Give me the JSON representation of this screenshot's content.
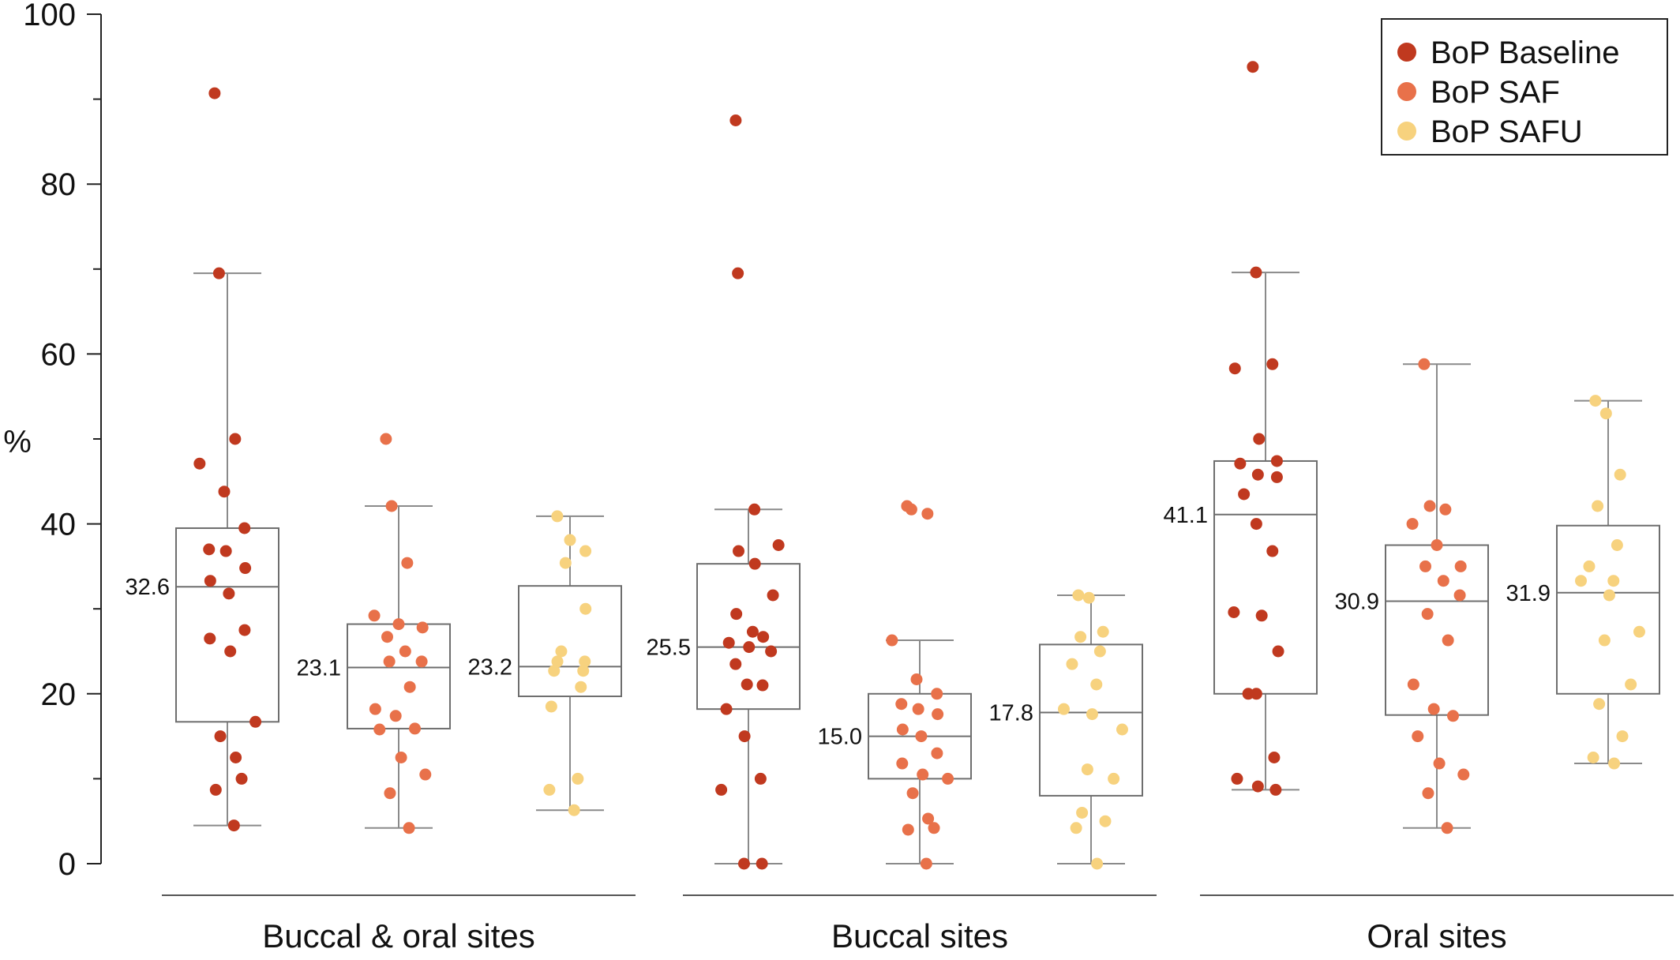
{
  "chart_data": {
    "type": "box",
    "ylabel": "%",
    "ylim": [
      0,
      100
    ],
    "yticks": [
      0,
      20,
      40,
      60,
      80,
      100
    ],
    "legend_position": "top-right",
    "series": [
      {
        "name": "BoP Baseline",
        "color": "#c0391f"
      },
      {
        "name": "BoP SAF",
        "color": "#e8714a"
      },
      {
        "name": "BoP SAFU",
        "color": "#f7d27e"
      }
    ],
    "groups": [
      {
        "label": "Buccal & oral sites",
        "boxes": [
          {
            "series": "BoP Baseline",
            "median": 32.6,
            "median_label": "32.6",
            "q1": 16.7,
            "q3": 39.5,
            "whisker_low": 4.5,
            "whisker_high": 69.5,
            "points": [
              90.7,
              69.5,
              50.0,
              47.1,
              43.8,
              39.5,
              37.0,
              36.8,
              34.8,
              33.3,
              31.8,
              27.5,
              26.5,
              25.0,
              16.7,
              15.0,
              12.5,
              10.0,
              8.7,
              4.5
            ]
          },
          {
            "series": "BoP SAF",
            "median": 23.1,
            "median_label": "23.1",
            "q1": 15.9,
            "q3": 28.2,
            "whisker_low": 4.2,
            "whisker_high": 42.1,
            "points": [
              50.0,
              42.1,
              35.4,
              29.2,
              28.2,
              27.8,
              26.7,
              25.0,
              23.8,
              23.8,
              20.8,
              18.2,
              17.4,
              15.9,
              15.8,
              12.5,
              10.5,
              8.3,
              4.2
            ]
          },
          {
            "series": "BoP SAFU",
            "median": 23.2,
            "median_label": "23.2",
            "q1": 19.7,
            "q3": 32.7,
            "whisker_low": 6.3,
            "whisker_high": 40.9,
            "points": [
              40.9,
              38.1,
              36.8,
              35.4,
              30.0,
              25.0,
              23.8,
              23.8,
              22.7,
              22.7,
              20.8,
              18.5,
              10.0,
              8.7,
              6.3
            ]
          }
        ]
      },
      {
        "label": "Buccal sites",
        "boxes": [
          {
            "series": "BoP Baseline",
            "median": 25.5,
            "median_label": "25.5",
            "q1": 18.2,
            "q3": 35.3,
            "whisker_low": 0.0,
            "whisker_high": 41.7,
            "points": [
              87.5,
              69.5,
              41.7,
              37.5,
              36.8,
              35.3,
              31.6,
              29.4,
              27.3,
              26.7,
              26.0,
              25.5,
              25.0,
              23.5,
              21.1,
              21.0,
              18.2,
              15.0,
              10.0,
              8.7,
              0.0,
              0.0
            ]
          },
          {
            "series": "BoP SAF",
            "median": 15.0,
            "median_label": "15.0",
            "q1": 10.0,
            "q3": 20.0,
            "whisker_low": 0.0,
            "whisker_high": 26.3,
            "points": [
              42.1,
              41.7,
              41.2,
              26.3,
              21.7,
              20.0,
              18.8,
              18.2,
              17.6,
              15.8,
              15.0,
              13.0,
              11.8,
              10.5,
              10.0,
              8.3,
              5.3,
              4.2,
              4.0,
              0.0
            ]
          },
          {
            "series": "BoP SAFU",
            "median": 17.8,
            "median_label": "17.8",
            "q1": 8.0,
            "q3": 25.8,
            "whisker_low": 0.0,
            "whisker_high": 31.6,
            "points": [
              31.6,
              31.3,
              27.3,
              26.7,
              25.0,
              23.5,
              21.1,
              18.2,
              17.6,
              15.8,
              11.1,
              10.0,
              6.0,
              5.0,
              4.2,
              0.0
            ]
          }
        ]
      },
      {
        "label": "Oral sites",
        "boxes": [
          {
            "series": "BoP Baseline",
            "median": 41.1,
            "median_label": "41.1",
            "q1": 20.0,
            "q3": 47.4,
            "whisker_low": 8.7,
            "whisker_high": 69.6,
            "points": [
              93.8,
              69.6,
              58.8,
              58.3,
              50.0,
              47.4,
              47.1,
              45.8,
              45.5,
              43.5,
              40.0,
              36.8,
              29.6,
              29.2,
              25.0,
              20.0,
              20.0,
              12.5,
              10.0,
              9.1,
              8.7
            ]
          },
          {
            "series": "BoP SAF",
            "median": 30.9,
            "median_label": "30.9",
            "q1": 17.5,
            "q3": 37.5,
            "whisker_low": 4.2,
            "whisker_high": 58.8,
            "points": [
              58.8,
              42.1,
              41.7,
              40.0,
              37.5,
              35.0,
              35.0,
              33.3,
              31.6,
              29.4,
              26.3,
              21.1,
              18.2,
              17.4,
              15.0,
              11.8,
              10.5,
              8.3,
              4.2
            ]
          },
          {
            "series": "BoP SAFU",
            "median": 31.9,
            "median_label": "31.9",
            "q1": 20.0,
            "q3": 39.8,
            "whisker_low": 11.8,
            "whisker_high": 54.5,
            "points": [
              54.5,
              53.0,
              45.8,
              42.1,
              37.5,
              35.0,
              33.3,
              33.3,
              31.6,
              27.3,
              26.3,
              21.1,
              18.8,
              15.0,
              12.5,
              11.8
            ]
          }
        ]
      }
    ]
  }
}
